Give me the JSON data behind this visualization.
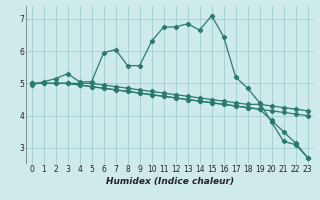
{
  "bg_color": "#ceeaea",
  "grid_color": "#9ecece",
  "line_color": "#2a7a6e",
  "xlabel": "Humidex (Indice chaleur)",
  "xlim": [
    -0.5,
    23.5
  ],
  "ylim": [
    2.5,
    7.4
  ],
  "yticks": [
    3,
    4,
    5,
    6,
    7
  ],
  "xticks": [
    0,
    1,
    2,
    3,
    4,
    5,
    6,
    7,
    8,
    9,
    10,
    11,
    12,
    13,
    14,
    15,
    16,
    17,
    18,
    19,
    20,
    21,
    22,
    23
  ],
  "lines": [
    {
      "x": [
        0,
        1,
        2,
        3,
        4,
        5,
        6,
        7,
        8,
        9,
        10,
        11,
        12,
        13,
        14,
        15,
        16,
        17,
        18,
        19,
        20,
        21,
        22,
        23
      ],
      "y": [
        4.95,
        5.05,
        5.15,
        5.3,
        5.05,
        5.05,
        5.95,
        6.05,
        5.55,
        5.55,
        6.3,
        6.75,
        6.75,
        6.85,
        6.65,
        7.1,
        6.45,
        5.2,
        4.85,
        4.4,
        3.8,
        3.2,
        3.1,
        2.7
      ]
    },
    {
      "x": [
        0,
        1,
        2,
        3,
        4,
        5,
        6,
        7,
        8,
        9,
        10,
        11,
        12,
        13,
        14,
        15,
        16,
        17,
        18,
        19,
        20,
        21,
        22,
        23
      ],
      "y": [
        5.0,
        5.0,
        5.0,
        5.0,
        5.0,
        5.0,
        4.95,
        4.9,
        4.85,
        4.8,
        4.75,
        4.7,
        4.65,
        4.6,
        4.55,
        4.5,
        4.45,
        4.4,
        4.35,
        4.35,
        4.3,
        4.25,
        4.2,
        4.15
      ]
    },
    {
      "x": [
        0,
        1,
        2,
        3,
        4,
        5,
        6,
        7,
        8,
        9,
        10,
        11,
        12,
        13,
        14,
        15,
        16,
        17,
        18,
        19,
        20,
        21,
        22,
        23
      ],
      "y": [
        5.0,
        5.0,
        5.0,
        5.0,
        4.95,
        4.9,
        4.85,
        4.8,
        4.75,
        4.7,
        4.65,
        4.6,
        4.55,
        4.5,
        4.45,
        4.4,
        4.35,
        4.3,
        4.25,
        4.2,
        4.15,
        4.1,
        4.05,
        4.0
      ]
    },
    {
      "x": [
        0,
        1,
        2,
        3,
        4,
        5,
        6,
        7,
        8,
        9,
        10,
        11,
        12,
        13,
        14,
        15,
        16,
        17,
        18,
        19,
        20,
        21,
        22,
        23
      ],
      "y": [
        5.0,
        5.0,
        5.0,
        5.0,
        4.95,
        4.9,
        4.85,
        4.8,
        4.75,
        4.7,
        4.65,
        4.6,
        4.55,
        4.5,
        4.45,
        4.4,
        4.35,
        4.3,
        4.25,
        4.2,
        3.85,
        3.5,
        3.15,
        2.7
      ]
    }
  ]
}
